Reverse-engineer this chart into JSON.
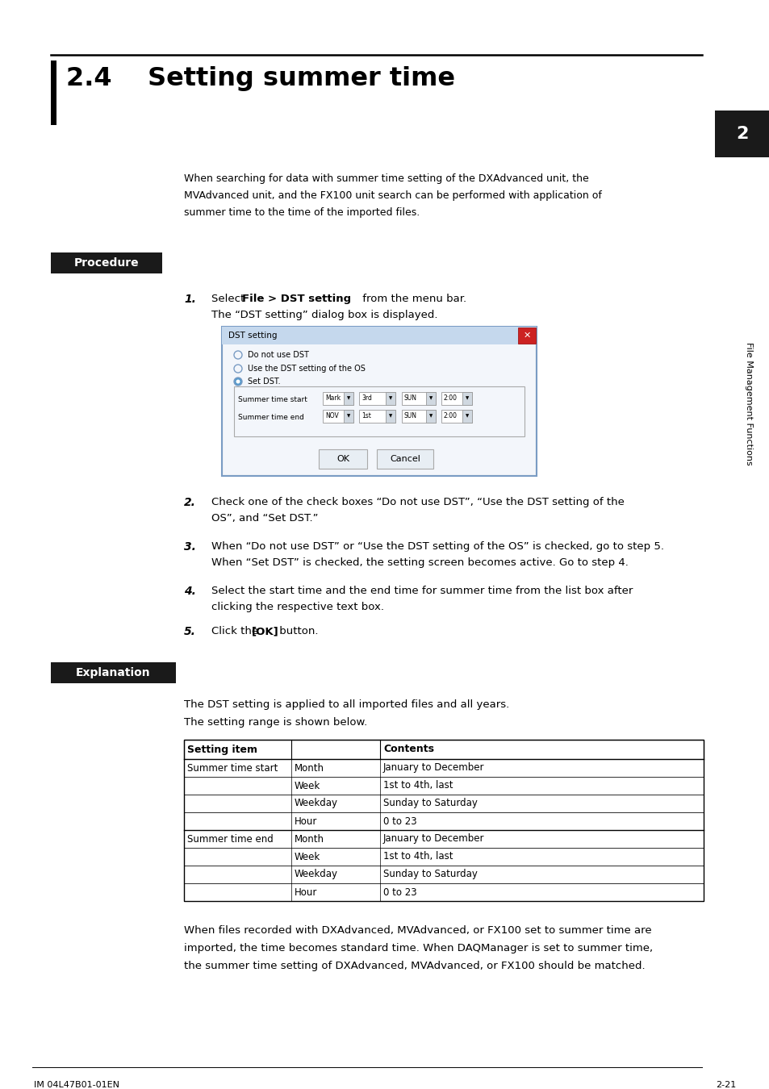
{
  "title": "2.4    Setting summer time",
  "background_color": "#ffffff",
  "intro_lines": [
    "When searching for data with summer time setting of the DXAdvanced unit, the",
    "MVAdvanced unit, and the FX100 unit search can be performed with application of",
    "summer time to the time of the imported files."
  ],
  "procedure_label": "Procedure",
  "explanation_label": "Explanation",
  "explanation_text1": "The DST setting is applied to all imported files and all years.",
  "explanation_text2": "The setting range is shown below.",
  "table_header_col1": "Setting item",
  "table_header_col3": "Contents",
  "table_rows": [
    [
      "Summer time start",
      "Month",
      "January to December"
    ],
    [
      "",
      "Week",
      "1st to 4th, last"
    ],
    [
      "",
      "Weekday",
      "Sunday to Saturday"
    ],
    [
      "",
      "Hour",
      "0 to 23"
    ],
    [
      "Summer time end",
      "Month",
      "January to December"
    ],
    [
      "",
      "Week",
      "1st to 4th, last"
    ],
    [
      "",
      "Weekday",
      "Sunday to Saturday"
    ],
    [
      "",
      "Hour",
      "0 to 23"
    ]
  ],
  "footer_lines": [
    "When files recorded with DXAdvanced, MVAdvanced, or FX100 set to summer time are",
    "imported, the time becomes standard time. When DAQManager is set to summer time,",
    "the summer time setting of DXAdvanced, MVAdvanced, or FX100 should be matched."
  ],
  "page_num": "2-21",
  "doc_id": "IM 04L47B01-01EN",
  "chapter_label": "File Management Functions",
  "chapter_num": "2",
  "label_bg_color": "#1a1a1a",
  "label_text_color": "#ffffff",
  "step1_before": "Select ",
  "step1_bold": "File > DST setting",
  "step1_after": " from the menu bar.",
  "step1_line2": "The “DST setting” dialog box is displayed.",
  "step2_line1": "Check one of the check boxes “Do not use DST”, “Use the DST setting of the",
  "step2_line2": "OS”, and “Set DST.”",
  "step3_line1": "When “Do not use DST” or “Use the DST setting of the OS” is checked, go to step 5.",
  "step3_line2": "When “Set DST” is checked, the setting screen becomes active. Go to step 4.",
  "step4_line1": "Select the start time and the end time for summer time from the list box after",
  "step4_line2": "clicking the respective text box.",
  "step5_before": "Click the ",
  "step5_bold": "[OK]",
  "step5_after": " button."
}
